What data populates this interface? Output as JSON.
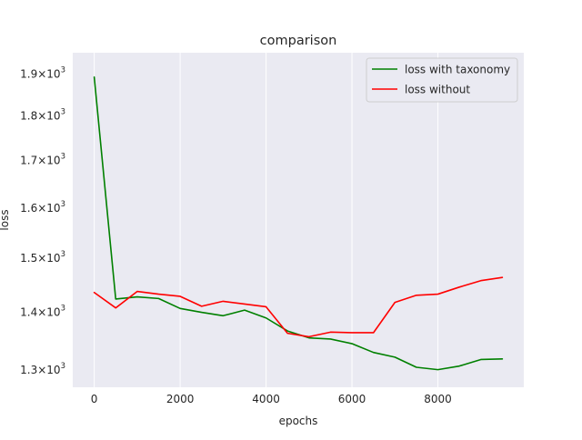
{
  "chart_data": {
    "type": "line",
    "title": "comparison",
    "xlabel": "epochs",
    "ylabel": "loss",
    "yscale": "log",
    "xlim": [
      -500,
      10000
    ],
    "ylim": [
      1270,
      1950
    ],
    "grid": true,
    "legend_position": "top-right",
    "x_ticks": [
      0,
      2000,
      4000,
      6000,
      8000
    ],
    "x_tick_labels": [
      "0",
      "2000",
      "4000",
      "6000",
      "8000"
    ],
    "y_ticks": [
      1300,
      1400,
      1500,
      1600,
      1700,
      1800,
      1900
    ],
    "y_tick_labels": [
      {
        "mantissa": "1.3",
        "base": "10",
        "exp": "3"
      },
      {
        "mantissa": "1.4",
        "base": "10",
        "exp": "3"
      },
      {
        "mantissa": "1.5",
        "base": "10",
        "exp": "3"
      },
      {
        "mantissa": "1.6",
        "base": "10",
        "exp": "3"
      },
      {
        "mantissa": "1.7",
        "base": "10",
        "exp": "3"
      },
      {
        "mantissa": "1.8",
        "base": "10",
        "exp": "3"
      },
      {
        "mantissa": "1.9",
        "base": "10",
        "exp": "3"
      }
    ],
    "x": [
      0,
      500,
      1000,
      1500,
      2000,
      2500,
      3000,
      3500,
      4000,
      4500,
      5000,
      5500,
      6000,
      6500,
      7000,
      7500,
      8000,
      8500,
      9000,
      9500
    ],
    "series": [
      {
        "name": "loss with taxonomy",
        "color": "#008000",
        "values": [
          1890,
          1422,
          1426,
          1423,
          1405,
          1398,
          1392,
          1402,
          1388,
          1365,
          1353,
          1351,
          1343,
          1328,
          1320,
          1303,
          1299,
          1305,
          1316,
          1317
        ]
      },
      {
        "name": "loss without",
        "color": "#ff0000",
        "values": [
          1434,
          1406,
          1436,
          1431,
          1427,
          1409,
          1418,
          1413,
          1408,
          1361,
          1355,
          1363,
          1362,
          1362,
          1416,
          1429,
          1431,
          1444,
          1456,
          1462
        ]
      }
    ]
  }
}
